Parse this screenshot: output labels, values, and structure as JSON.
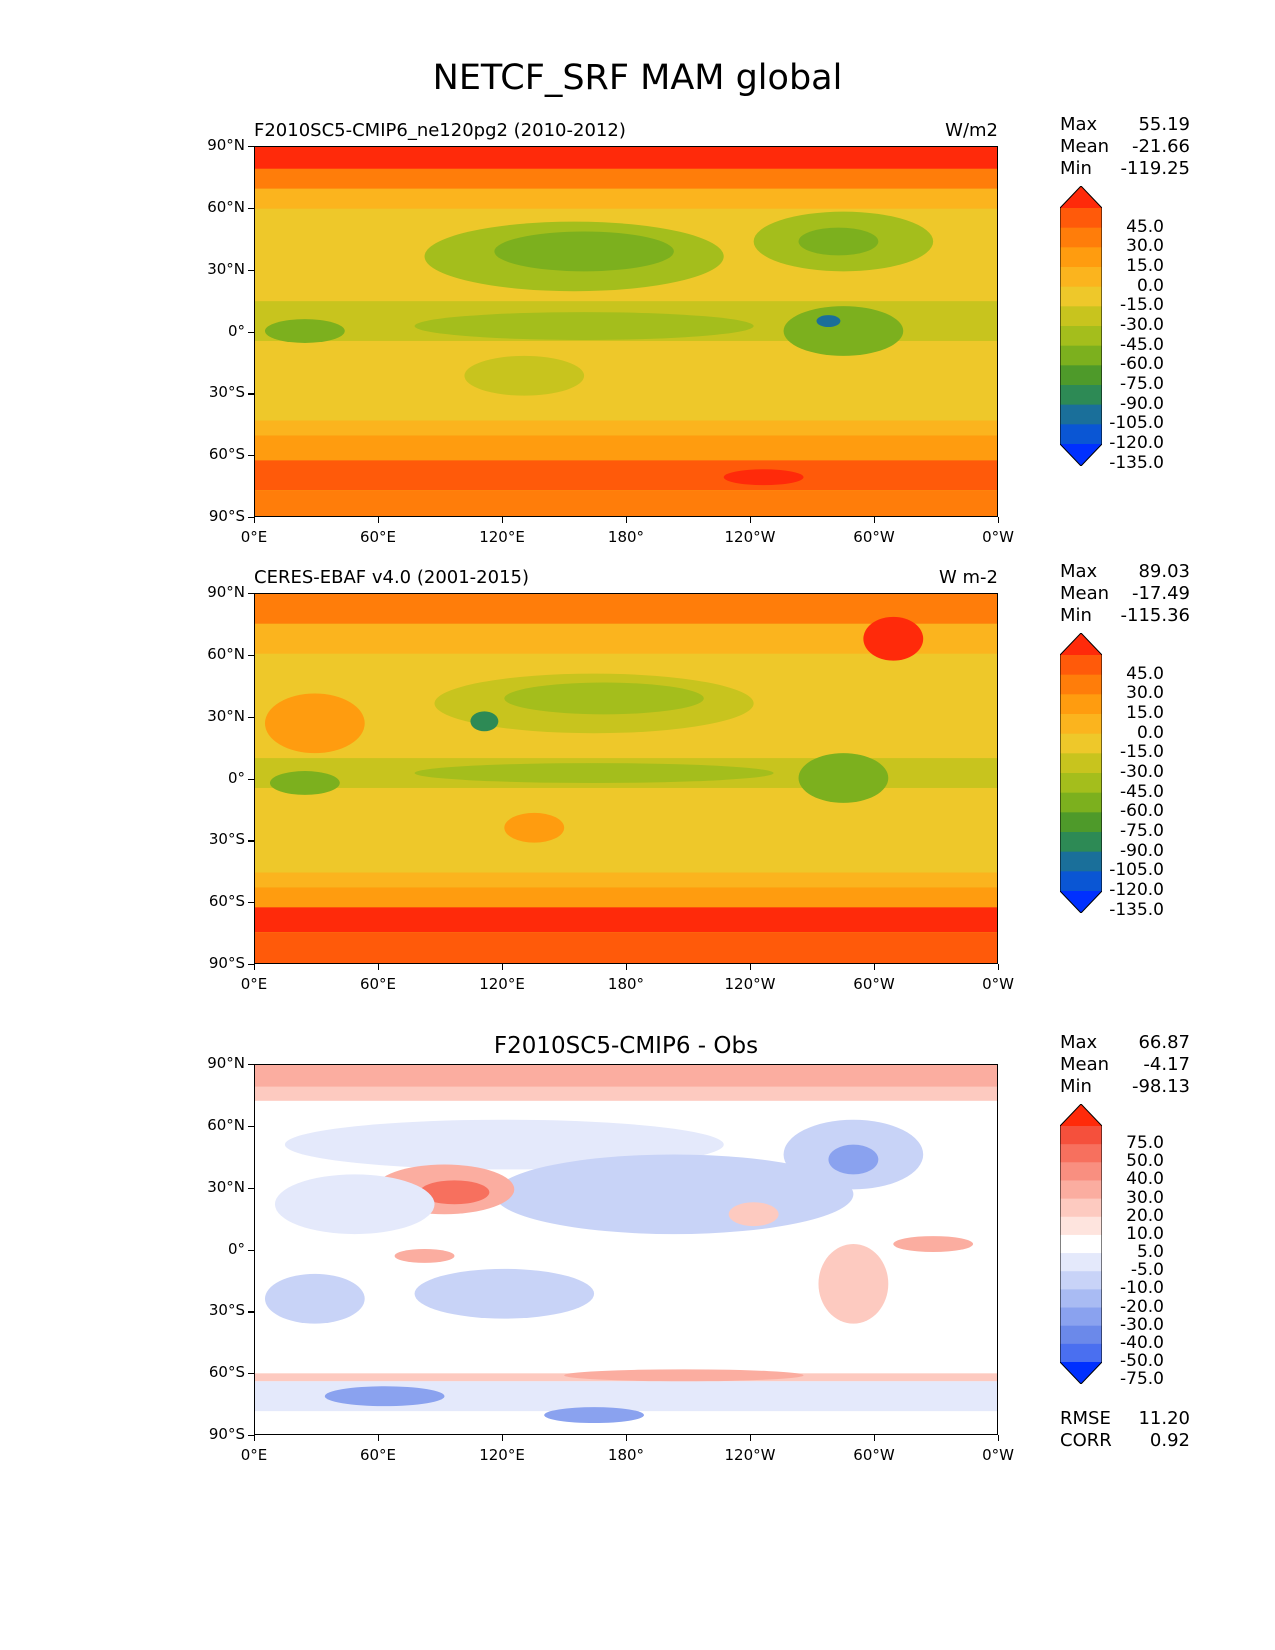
{
  "figure": {
    "title": "NETCF_SRF MAM global"
  },
  "axes": {
    "lat_labels": [
      "90°N",
      "60°N",
      "30°N",
      "0°",
      "30°S",
      "60°S",
      "90°S"
    ],
    "lon_labels": [
      "0°E",
      "60°E",
      "120°E",
      "180°",
      "120°W",
      "60°W",
      "0°W"
    ]
  },
  "panels": [
    {
      "title": "F2010SC5-CMIP6_ne120pg2 (2010-2012)",
      "units": "W/m2",
      "stats": {
        "max_label": "Max",
        "max": "55.19",
        "mean_label": "Mean",
        "mean": "-21.66",
        "min_label": "Min",
        "min": "-119.25"
      },
      "colorbar": {
        "labels": [
          "45.0",
          "30.0",
          "15.0",
          "0.0",
          "-15.0",
          "-30.0",
          "-45.0",
          "-60.0",
          "-75.0",
          "-90.0",
          "-105.0",
          "-120.0",
          "-135.0"
        ],
        "colors": [
          "#ff2a0a",
          "#ff5a0a",
          "#ff7d0a",
          "#ff9c0f",
          "#fbb41e",
          "#eec82a",
          "#c8c41e",
          "#a4be1c",
          "#7cb01e",
          "#4e9a2a",
          "#2d8a55",
          "#1a6f9a",
          "#0a56d4",
          "#0030ff"
        ]
      }
    },
    {
      "title": "CERES-EBAF v4.0 (2001-2015)",
      "units": "W m-2",
      "stats": {
        "max_label": "Max",
        "max": "89.03",
        "mean_label": "Mean",
        "mean": "-17.49",
        "min_label": "Min",
        "min": "-115.36"
      },
      "colorbar": {
        "labels": [
          "45.0",
          "30.0",
          "15.0",
          "0.0",
          "-15.0",
          "-30.0",
          "-45.0",
          "-60.0",
          "-75.0",
          "-90.0",
          "-105.0",
          "-120.0",
          "-135.0"
        ],
        "colors": [
          "#ff2a0a",
          "#ff5a0a",
          "#ff7d0a",
          "#ff9c0f",
          "#fbb41e",
          "#eec82a",
          "#c8c41e",
          "#a4be1c",
          "#7cb01e",
          "#4e9a2a",
          "#2d8a55",
          "#1a6f9a",
          "#0a56d4",
          "#0030ff"
        ]
      }
    },
    {
      "title": "F2010SC5-CMIP6 - Obs",
      "units": "",
      "stats": {
        "max_label": "Max",
        "max": "66.87",
        "mean_label": "Mean",
        "mean": "-4.17",
        "min_label": "Min",
        "min": "-98.13"
      },
      "colorbar": {
        "labels": [
          "75.0",
          "50.0",
          "40.0",
          "30.0",
          "20.0",
          "10.0",
          "5.0",
          "-5.0",
          "-10.0",
          "-20.0",
          "-30.0",
          "-40.0",
          "-50.0",
          "-75.0"
        ],
        "colors": [
          "#ff2a0a",
          "#f5503c",
          "#f7705e",
          "#f98f80",
          "#fbada0",
          "#fdcac0",
          "#fee4de",
          "#ffffff",
          "#e4e9fb",
          "#c8d3f7",
          "#a9bbf3",
          "#8aa2ef",
          "#6b89ea",
          "#4a6ff0",
          "#0030ff"
        ]
      },
      "footer": {
        "rmse_label": "RMSE",
        "rmse": "11.20",
        "corr_label": "CORR",
        "corr": "0.92"
      }
    }
  ]
}
